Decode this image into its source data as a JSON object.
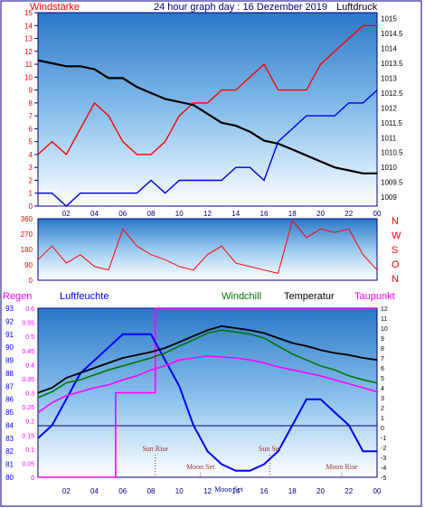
{
  "header": {
    "windstaerke": "Windstärke",
    "title": "24 hour graph day : 16 Dezember 2019",
    "luftdruck": "Luftdruck"
  },
  "colors": {
    "wind": "#ff0000",
    "gust": "#0000ee",
    "pressure": "#000000",
    "humidity": "#0000ff",
    "windchill": "#007700",
    "temperature": "#000000",
    "dewpoint": "#ff00ff",
    "rain": "#ff00ff",
    "frame": "#000080"
  },
  "chart_data": [
    {
      "panel": "wind-pressure",
      "type": "line",
      "x_ticks": [
        "02",
        "04",
        "06",
        "08",
        "10",
        "12",
        "14",
        "16",
        "18",
        "20",
        "22",
        "00"
      ],
      "y_left_ticks": [
        "0",
        "1",
        "2",
        "3",
        "4",
        "5",
        "6",
        "7",
        "8",
        "9",
        "10",
        "11",
        "12",
        "13",
        "14",
        "15"
      ],
      "y_right_ticks": [
        "1009",
        "1009.5",
        "1010",
        "1010.5",
        "1011",
        "1011.5",
        "1012",
        "1012.5",
        "1013",
        "1013.5",
        "1014",
        "1014.5",
        "1015"
      ],
      "y_left_range": [
        0,
        15
      ],
      "y_right_range": [
        1008.7,
        1015.2
      ],
      "x_range": [
        0,
        24
      ],
      "series": [
        {
          "role": "wind-max",
          "color": "#ff0000",
          "x": [
            0,
            1,
            2,
            3,
            4,
            5,
            6,
            7,
            8,
            9,
            10,
            11,
            12,
            13,
            14,
            15,
            16,
            17,
            18,
            19,
            20,
            21,
            22,
            23,
            24
          ],
          "y": [
            4,
            5,
            4,
            6,
            8,
            7,
            5,
            4,
            4,
            5,
            7,
            8,
            8,
            9,
            9,
            10,
            11,
            9,
            9,
            9,
            11,
            12,
            13,
            14,
            14
          ]
        },
        {
          "role": "wind-min",
          "color": "#0000ee",
          "x": [
            0,
            1,
            2,
            3,
            4,
            5,
            6,
            7,
            8,
            9,
            10,
            11,
            12,
            13,
            14,
            15,
            16,
            17,
            18,
            19,
            20,
            21,
            22,
            23,
            24
          ],
          "y": [
            1,
            1,
            0,
            1,
            1,
            1,
            1,
            1,
            2,
            1,
            2,
            2,
            2,
            2,
            3,
            3,
            2,
            5,
            6,
            7,
            7,
            7,
            8,
            8,
            9
          ]
        },
        {
          "role": "pressure",
          "color": "#000000",
          "x": [
            0,
            1,
            2,
            3,
            4,
            5,
            6,
            7,
            8,
            9,
            10,
            11,
            12,
            13,
            14,
            15,
            16,
            17,
            18,
            19,
            20,
            21,
            22,
            23,
            24
          ],
          "y": [
            1013.6,
            1013.5,
            1013.4,
            1013.4,
            1013.3,
            1013.0,
            1013.0,
            1012.7,
            1012.5,
            1012.3,
            1012.2,
            1012.1,
            1011.8,
            1011.5,
            1011.4,
            1011.2,
            1010.9,
            1010.8,
            1010.6,
            1010.4,
            1010.2,
            1010.0,
            1009.9,
            1009.8,
            1009.8
          ]
        }
      ]
    },
    {
      "panel": "wind-direction",
      "type": "line",
      "y_ticks": [
        "0",
        "90",
        "180",
        "270",
        "360"
      ],
      "y_range": [
        0,
        360
      ],
      "compass": [
        "N",
        "W",
        "S",
        "O",
        "N"
      ],
      "x_range": [
        0,
        24
      ],
      "series": [
        {
          "role": "direction",
          "color": "#ff0000",
          "x": [
            0,
            1,
            2,
            3,
            4,
            5,
            6,
            7,
            8,
            9,
            10,
            11,
            12,
            13,
            14,
            15,
            16,
            17,
            18,
            19,
            20,
            21,
            22,
            23,
            24
          ],
          "y": [
            120,
            200,
            100,
            150,
            80,
            60,
            300,
            200,
            150,
            120,
            80,
            60,
            150,
            200,
            100,
            80,
            60,
            40,
            350,
            250,
            300,
            280,
            300,
            150,
            60
          ]
        }
      ]
    },
    {
      "panel": "temperature",
      "type": "line",
      "labels": {
        "regen": "Regen",
        "luftfeuchte": "Luftfeuchte",
        "windchill": "Windchill",
        "temperatur": "Temperatur",
        "taupunkt": "Taupunkt"
      },
      "y_rain_ticks": [
        "0",
        "0.05",
        "0.1",
        "0.15",
        "0.2",
        "0.25",
        "0.3",
        "0.35",
        "0.4",
        "0.45",
        "0.5",
        "0.55",
        "0.6"
      ],
      "y_humidity_ticks": [
        "80",
        "81",
        "82",
        "83",
        "84",
        "85",
        "86",
        "87",
        "88",
        "89",
        "90",
        "91",
        "92",
        "93"
      ],
      "y_temp_ticks": [
        "-5",
        "-4",
        "-3",
        "-2",
        "-1",
        "0",
        "1",
        "2",
        "3",
        "4",
        "5",
        "6",
        "7",
        "8",
        "9",
        "10",
        "11",
        "12"
      ],
      "rain_range": [
        0,
        0.6
      ],
      "humidity_range": [
        80,
        93
      ],
      "temp_range": [
        -5,
        12
      ],
      "x_range": [
        0,
        24
      ],
      "series": [
        {
          "role": "rain",
          "color": "#ff00ff",
          "x": [
            0,
            5.5,
            5.5,
            8.3,
            8.3,
            24
          ],
          "y": [
            0,
            0,
            0.3,
            0.3,
            0.6,
            0.6
          ]
        },
        {
          "role": "humidity",
          "color": "#0000ff",
          "x": [
            0,
            1,
            2,
            3,
            4,
            5,
            6,
            7,
            8,
            9,
            10,
            11,
            12,
            13,
            14,
            15,
            16,
            17,
            18,
            19,
            20,
            21,
            22,
            23,
            24
          ],
          "y": [
            83,
            84,
            86,
            88,
            89,
            90,
            91,
            91,
            91,
            89,
            87,
            84,
            82,
            81,
            80.5,
            80.5,
            81,
            82,
            84,
            86,
            86,
            85,
            84,
            82,
            82
          ]
        },
        {
          "role": "temperature",
          "color": "#000000",
          "x": [
            0,
            1,
            2,
            3,
            4,
            5,
            6,
            7,
            8,
            9,
            10,
            11,
            12,
            13,
            14,
            15,
            16,
            17,
            18,
            19,
            20,
            21,
            22,
            23,
            24
          ],
          "y": [
            3.5,
            4,
            5,
            5.5,
            6,
            6.5,
            7,
            7.3,
            7.6,
            8,
            8.6,
            9.2,
            9.8,
            10.2,
            10,
            9.8,
            9.5,
            9,
            8.5,
            8.2,
            7.8,
            7.5,
            7.3,
            7,
            6.8
          ]
        },
        {
          "role": "windchill",
          "color": "#007700",
          "x": [
            0,
            1,
            2,
            3,
            4,
            5,
            6,
            7,
            8,
            9,
            10,
            11,
            12,
            13,
            14,
            15,
            16,
            17,
            18,
            19,
            20,
            21,
            22,
            23,
            24
          ],
          "y": [
            3,
            3.6,
            4.5,
            4.8,
            5.3,
            5.8,
            6.2,
            6.6,
            7,
            7.5,
            8.2,
            8.8,
            9.5,
            9.8,
            9.6,
            9.4,
            9,
            8.2,
            7.4,
            6.8,
            6.2,
            5.8,
            5.2,
            4.8,
            4.5
          ]
        },
        {
          "role": "dewpoint",
          "color": "#ff00ff",
          "x": [
            0,
            1,
            2,
            3,
            4,
            5,
            6,
            7,
            8,
            9,
            10,
            11,
            12,
            13,
            14,
            15,
            16,
            17,
            18,
            19,
            20,
            21,
            22,
            23,
            24
          ],
          "y": [
            1.5,
            2.5,
            3.2,
            3.6,
            4,
            4.3,
            4.8,
            5.2,
            5.8,
            6.2,
            6.8,
            7,
            7.2,
            7.1,
            7,
            6.8,
            6.5,
            6.1,
            5.8,
            5.5,
            5.2,
            4.8,
            4.4,
            4,
            3.6
          ]
        }
      ],
      "events": [
        {
          "label": "Sun Rise",
          "x": 8.3,
          "row": "upper"
        },
        {
          "label": "Sun Set",
          "x": 16.4,
          "row": "upper"
        },
        {
          "label": "Moon Set",
          "x": 11.5,
          "row": "middle"
        },
        {
          "label": "Moon Rise",
          "x": 21.5,
          "row": "middle"
        },
        {
          "label": "Moon Set",
          "x": 13.5,
          "row": "lower"
        }
      ],
      "x_ticks": [
        "02",
        "04",
        "06",
        "08",
        "10",
        "12",
        "14",
        "16",
        "18",
        "20",
        "22",
        "00"
      ]
    }
  ]
}
